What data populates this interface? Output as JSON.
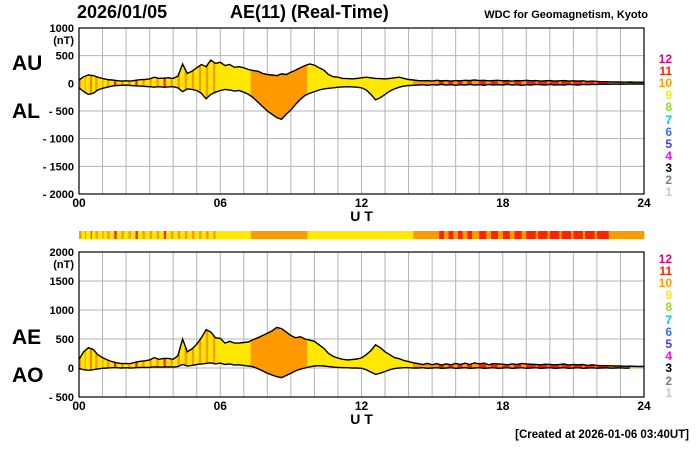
{
  "title": {
    "date": "2026/01/05",
    "main": "AE(11) (Real-Time)",
    "credit": "WDC for Geomagnetism, Kyoto"
  },
  "footer": {
    "created_note": "[Created at 2026-01-06 03:40UT]"
  },
  "panel_labels": {
    "top_upper": "AU",
    "top_lower": "AL",
    "bottom_upper": "AE",
    "bottom_lower": "AO"
  },
  "legend": {
    "counts": [
      {
        "label": "12",
        "color": "#E8007D"
      },
      {
        "label": "11",
        "color": "#FF2200"
      },
      {
        "label": "10",
        "color": "#FF9900"
      },
      {
        "label": "9",
        "color": "#FFE800"
      },
      {
        "label": "8",
        "color": "#8EE022"
      },
      {
        "label": "7",
        "color": "#00CCCC"
      },
      {
        "label": "6",
        "color": "#3377EE"
      },
      {
        "label": "5",
        "color": "#4B3AD6"
      },
      {
        "label": "4",
        "color": "#FF00FF"
      },
      {
        "label": "3",
        "color": "#000000"
      },
      {
        "label": "2",
        "color": "#7F7F7F"
      },
      {
        "label": "1",
        "color": "#C9C9C9"
      }
    ]
  },
  "station_colors": {
    "9": "#FFE800",
    "10": "#FF9900",
    "11": "#FF2200",
    "12": "#E8007D"
  },
  "station_segments": [
    [
      0,
      0.1,
      10
    ],
    [
      0.1,
      0.25,
      9
    ],
    [
      0.25,
      0.3,
      10
    ],
    [
      0.3,
      0.5,
      9
    ],
    [
      0.5,
      0.55,
      11
    ],
    [
      0.55,
      0.7,
      9
    ],
    [
      0.7,
      0.8,
      10
    ],
    [
      0.8,
      1,
      9
    ],
    [
      1,
      1.05,
      10
    ],
    [
      1.05,
      1.2,
      9
    ],
    [
      1.2,
      1.3,
      10
    ],
    [
      1.3,
      1.5,
      9
    ],
    [
      1.5,
      1.6,
      11
    ],
    [
      1.6,
      1.8,
      9
    ],
    [
      1.8,
      1.9,
      10
    ],
    [
      1.9,
      2.1,
      9
    ],
    [
      2.1,
      2.2,
      10
    ],
    [
      2.2,
      2.4,
      9
    ],
    [
      2.4,
      2.5,
      11
    ],
    [
      2.5,
      2.7,
      9
    ],
    [
      2.7,
      2.8,
      10
    ],
    [
      2.8,
      3,
      9
    ],
    [
      3,
      3.1,
      10
    ],
    [
      3.1,
      3.3,
      9
    ],
    [
      3.3,
      3.4,
      10
    ],
    [
      3.4,
      3.6,
      9
    ],
    [
      3.6,
      3.7,
      11
    ],
    [
      3.7,
      3.9,
      9
    ],
    [
      3.9,
      4,
      10
    ],
    [
      4,
      4.2,
      9
    ],
    [
      4.2,
      4.3,
      10
    ],
    [
      4.3,
      4.5,
      9
    ],
    [
      4.5,
      4.6,
      10
    ],
    [
      4.6,
      4.8,
      9
    ],
    [
      4.8,
      4.9,
      10
    ],
    [
      4.9,
      5.1,
      9
    ],
    [
      5.1,
      5.2,
      10
    ],
    [
      5.2,
      5.4,
      9
    ],
    [
      5.4,
      5.5,
      10
    ],
    [
      5.5,
      5.7,
      9
    ],
    [
      5.7,
      5.8,
      10
    ],
    [
      5.8,
      7.3,
      9
    ],
    [
      7.3,
      9.7,
      10
    ],
    [
      9.7,
      14.2,
      9
    ],
    [
      14.2,
      15.3,
      10
    ],
    [
      15.3,
      15.5,
      11
    ],
    [
      15.5,
      15.7,
      10
    ],
    [
      15.7,
      15.9,
      11
    ],
    [
      15.9,
      16.1,
      10
    ],
    [
      16.1,
      16.3,
      11
    ],
    [
      16.3,
      16.5,
      10
    ],
    [
      16.5,
      16.7,
      11
    ],
    [
      16.7,
      17,
      10
    ],
    [
      17,
      17.3,
      11
    ],
    [
      17.3,
      17.5,
      10
    ],
    [
      17.5,
      17.8,
      11
    ],
    [
      17.8,
      18,
      10
    ],
    [
      18,
      18.3,
      11
    ],
    [
      18.3,
      18.5,
      10
    ],
    [
      18.5,
      18.8,
      11
    ],
    [
      18.8,
      19,
      10
    ],
    [
      19,
      19.4,
      11
    ],
    [
      19.4,
      19.5,
      10
    ],
    [
      19.5,
      19.9,
      11
    ],
    [
      19.9,
      20,
      10
    ],
    [
      20,
      20.4,
      11
    ],
    [
      20.4,
      20.5,
      10
    ],
    [
      20.5,
      20.9,
      11
    ],
    [
      20.9,
      21,
      10
    ],
    [
      21,
      21.4,
      11
    ],
    [
      21.4,
      21.5,
      10
    ],
    [
      21.5,
      21.9,
      11
    ],
    [
      21.9,
      22,
      10
    ],
    [
      22,
      22.5,
      11
    ],
    [
      22.5,
      24,
      10
    ]
  ],
  "chart_data": [
    {
      "type": "area",
      "title": "AU / AL",
      "x": {
        "step_hours": 0.2,
        "range": [
          0,
          24
        ],
        "ticks": [
          0,
          6,
          12,
          18,
          24
        ],
        "tick_labels": [
          "00",
          "06",
          "12",
          "18",
          "24"
        ],
        "label": "U T"
      },
      "ylim": [
        -2000,
        1000
      ],
      "y_ticks": [
        1000,
        500,
        0,
        -500,
        -1000,
        -1500,
        -2000
      ],
      "y_tick_labels": [
        "1000",
        "500",
        "0",
        "- 500",
        "- 1000",
        "- 1500",
        "- 2000"
      ],
      "ylabel": "(nT)",
      "series": [
        {
          "name": "AU",
          "values": [
            60,
            120,
            150,
            140,
            110,
            90,
            70,
            60,
            50,
            40,
            45,
            40,
            55,
            65,
            70,
            80,
            110,
            90,
            95,
            100,
            90,
            130,
            350,
            180,
            220,
            280,
            340,
            300,
            420,
            360,
            380,
            320,
            340,
            290,
            300,
            280,
            250,
            230,
            220,
            180,
            160,
            150,
            140,
            170,
            160,
            200,
            240,
            280,
            320,
            350,
            330,
            280,
            240,
            160,
            120,
            110,
            90,
            85,
            80,
            90,
            100,
            110,
            100,
            90,
            85,
            80,
            90,
            100,
            110,
            90,
            70,
            60,
            50,
            45,
            50,
            40,
            55,
            45,
            50,
            40,
            50,
            45,
            55,
            50,
            60,
            50,
            55,
            45,
            50,
            55,
            45,
            50,
            40,
            50,
            45,
            55,
            45,
            50,
            40,
            45,
            50,
            40,
            45,
            50,
            40,
            45,
            40,
            45,
            35,
            40,
            35,
            30,
            30,
            25,
            25,
            25,
            20,
            25,
            20,
            20,
            20
          ]
        },
        {
          "name": "AL",
          "values": [
            -80,
            -150,
            -200,
            -180,
            -120,
            -90,
            -70,
            -50,
            -40,
            -35,
            -30,
            -40,
            -45,
            -50,
            -55,
            -60,
            -70,
            -60,
            -70,
            -65,
            -60,
            -80,
            -150,
            -100,
            -110,
            -130,
            -180,
            -280,
            -200,
            -160,
            -130,
            -110,
            -120,
            -140,
            -130,
            -160,
            -200,
            -260,
            -340,
            -420,
            -500,
            -560,
            -620,
            -650,
            -560,
            -480,
            -380,
            -290,
            -220,
            -180,
            -150,
            -120,
            -100,
            -90,
            -80,
            -70,
            -65,
            -60,
            -65,
            -70,
            -80,
            -120,
            -200,
            -300,
            -260,
            -200,
            -140,
            -100,
            -70,
            -50,
            -40,
            -35,
            -30,
            -25,
            -35,
            -25,
            -30,
            -20,
            -30,
            -25,
            -35,
            -25,
            -30,
            -20,
            -30,
            -25,
            -35,
            -20,
            -30,
            -25,
            -30,
            -20,
            -30,
            -25,
            -35,
            -25,
            -30,
            -20,
            -25,
            -30,
            -20,
            -30,
            -25,
            -30,
            -20,
            -25,
            -30,
            -20,
            -25,
            -20,
            -20,
            -15,
            -18,
            -15,
            -15,
            -12,
            -15,
            -12,
            -12,
            -10,
            -12
          ]
        }
      ]
    },
    {
      "type": "area",
      "title": "AE / AO",
      "x": {
        "step_hours": 0.2,
        "range": [
          0,
          24
        ],
        "ticks": [
          0,
          6,
          12,
          18,
          24
        ],
        "tick_labels": [
          "00",
          "06",
          "12",
          "18",
          "24"
        ],
        "label": "U T"
      },
      "ylim": [
        -500,
        2000
      ],
      "y_ticks": [
        2000,
        1500,
        1000,
        500,
        0,
        -500
      ],
      "y_tick_labels": [
        "2000",
        "1500",
        "1000",
        "500",
        "0",
        "- 500"
      ],
      "ylabel": "(nT)",
      "series": [
        {
          "name": "AE",
          "values": [
            150,
            280,
            350,
            320,
            230,
            180,
            140,
            110,
            90,
            75,
            75,
            80,
            100,
            115,
            125,
            140,
            180,
            150,
            165,
            165,
            150,
            210,
            500,
            280,
            330,
            410,
            520,
            660,
            620,
            520,
            510,
            430,
            460,
            430,
            430,
            440,
            450,
            490,
            520,
            560,
            600,
            640,
            700,
            680,
            620,
            560,
            520,
            540,
            500,
            480,
            460,
            400,
            340,
            250,
            200,
            170,
            150,
            140,
            145,
            155,
            175,
            230,
            300,
            400,
            350,
            280,
            230,
            180,
            160,
            130,
            110,
            90,
            75,
            60,
            80,
            55,
            75,
            50,
            70,
            55,
            80,
            60,
            85,
            60,
            90,
            70,
            85,
            55,
            75,
            70,
            65,
            55,
            70,
            60,
            80,
            70,
            65,
            60,
            55,
            65,
            60,
            55,
            60,
            70,
            50,
            60,
            55,
            60,
            45,
            55,
            45,
            40,
            40,
            38,
            35,
            35,
            30,
            32,
            30,
            28,
            30
          ]
        },
        {
          "name": "AO",
          "values": [
            -10,
            -30,
            -40,
            -30,
            -15,
            -5,
            0,
            5,
            5,
            0,
            5,
            0,
            5,
            10,
            10,
            10,
            20,
            15,
            15,
            20,
            15,
            25,
            60,
            35,
            45,
            60,
            70,
            80,
            90,
            70,
            85,
            60,
            70,
            50,
            55,
            45,
            35,
            20,
            -10,
            -50,
            -90,
            -120,
            -150,
            -165,
            -130,
            -90,
            -50,
            -20,
            0,
            20,
            35,
            40,
            35,
            25,
            15,
            10,
            5,
            5,
            0,
            0,
            -5,
            -30,
            -70,
            -110,
            -90,
            -60,
            -30,
            -10,
            0,
            5,
            5,
            0,
            0,
            5,
            -5,
            0,
            5,
            -5,
            0,
            5,
            -5,
            0,
            5,
            -5,
            0,
            5,
            -5,
            0,
            5,
            -5,
            0,
            5,
            -5,
            0,
            5,
            -5,
            0,
            5,
            -5,
            0,
            5,
            -5,
            0,
            5,
            -5,
            0,
            5,
            -5,
            0,
            3,
            -3,
            0,
            3,
            -3,
            0,
            3,
            -3,
            0
          ]
        }
      ]
    }
  ]
}
